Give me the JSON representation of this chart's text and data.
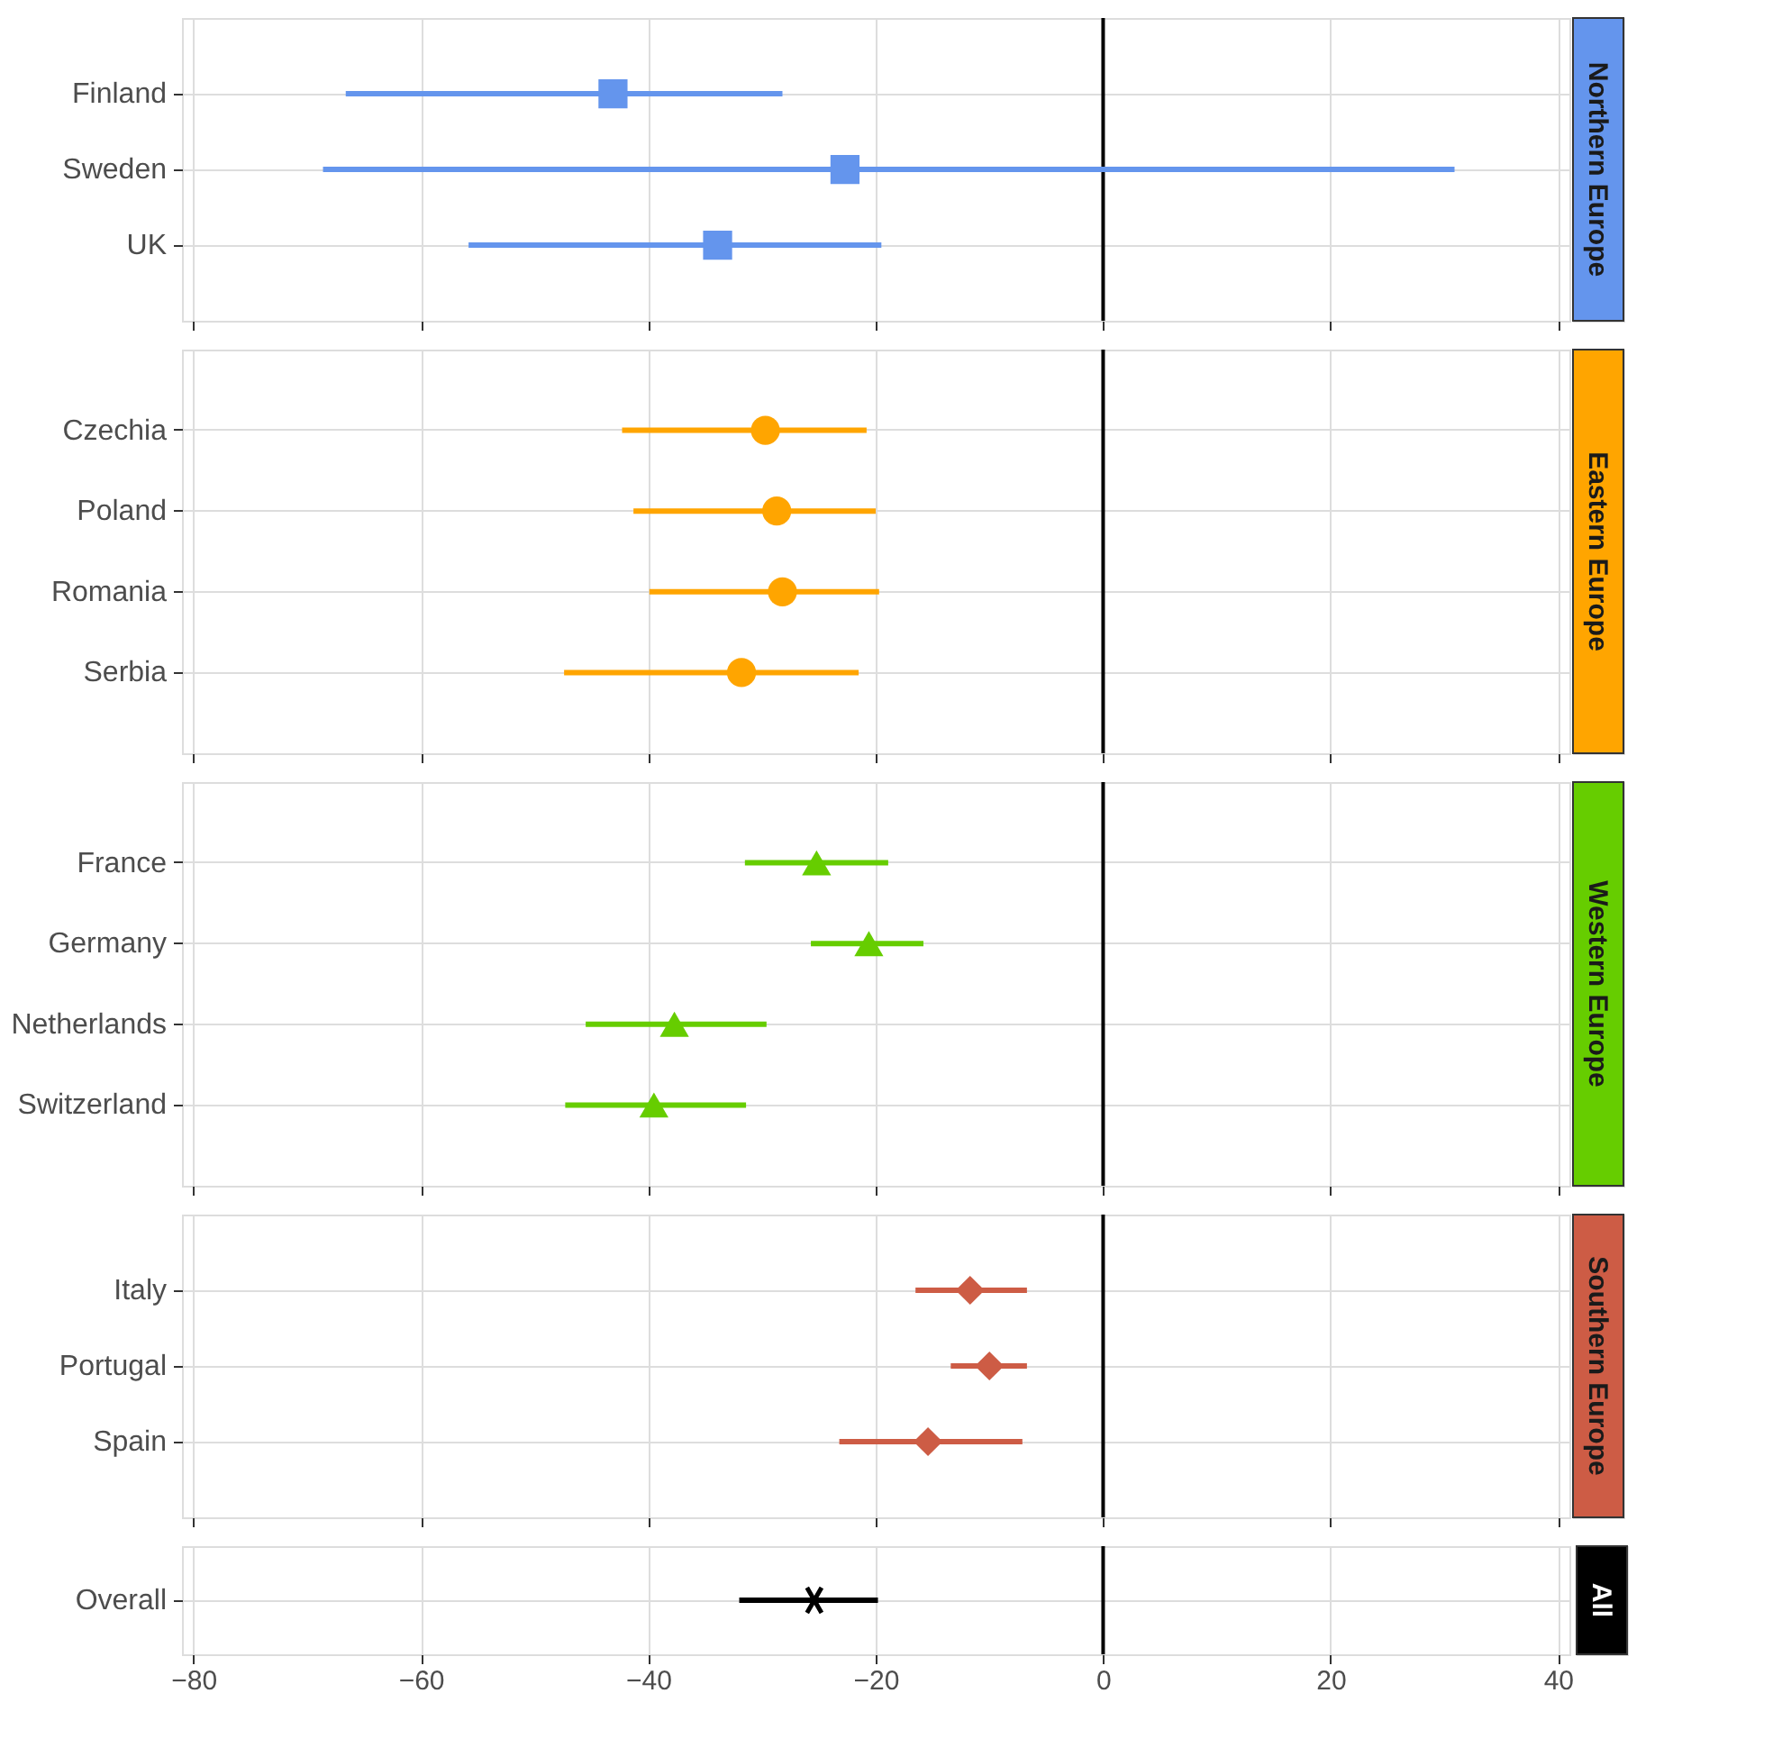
{
  "chart_data": [
    {
      "type": "scatter",
      "orientation": "horizontal",
      "title": "Northern Europe",
      "categories": [
        "Finland",
        "Sweden",
        "UK"
      ],
      "marker": "square",
      "series": [
        {
          "color": "#6495ed",
          "values": [
            -43.1,
            -22.7,
            -33.9
          ],
          "errors": [
            [
              -66.6,
              -28.2
            ],
            [
              -68.6,
              30.9
            ],
            [
              -55.8,
              -19.5
            ]
          ]
        }
      ],
      "xlim": [
        -81,
        41
      ],
      "xticks": [
        -80,
        -60,
        -40,
        -20,
        0,
        20,
        40
      ],
      "tick_labels": "y",
      "grid": true,
      "ref_lines": [
        {
          "axis": "x",
          "value": 0
        }
      ]
    },
    {
      "type": "scatter",
      "orientation": "horizontal",
      "title": "Eastern Europe",
      "categories": [
        "Czechia",
        "Poland",
        "Romania",
        "Serbia"
      ],
      "marker": "circle",
      "series": [
        {
          "color": "#ffa500",
          "values": [
            -29.7,
            -28.7,
            -28.2,
            -31.8
          ],
          "errors": [
            [
              -42.3,
              -20.8
            ],
            [
              -41.3,
              -20.0
            ],
            [
              -39.9,
              -19.7
            ],
            [
              -47.4,
              -21.5
            ]
          ]
        }
      ],
      "xlim": [
        -81,
        41
      ],
      "xticks": [
        -80,
        -60,
        -40,
        -20,
        0,
        20,
        40
      ],
      "tick_labels": "y",
      "grid": true,
      "ref_lines": [
        {
          "axis": "x",
          "value": 0
        }
      ]
    },
    {
      "type": "scatter",
      "orientation": "horizontal",
      "title": "Western Europe",
      "categories": [
        "France",
        "Germany",
        "Netherlands",
        "Switzerland"
      ],
      "marker": "triangle",
      "series": [
        {
          "color": "#66cd00",
          "values": [
            -25.2,
            -20.6,
            -37.7,
            -39.5
          ],
          "errors": [
            [
              -31.5,
              -18.9
            ],
            [
              -25.7,
              -15.8
            ],
            [
              -45.5,
              -29.6
            ],
            [
              -47.3,
              -31.4
            ]
          ]
        }
      ],
      "xlim": [
        -81,
        41
      ],
      "xticks": [
        -80,
        -60,
        -40,
        -20,
        0,
        20,
        40
      ],
      "tick_labels": "y",
      "grid": true,
      "ref_lines": [
        {
          "axis": "x",
          "value": 0
        }
      ]
    },
    {
      "type": "scatter",
      "orientation": "horizontal",
      "title": "Southern Europe",
      "categories": [
        "Italy",
        "Portugal",
        "Spain"
      ],
      "marker": "diamond",
      "series": [
        {
          "color": "#cd5c45",
          "values": [
            -11.7,
            -10.0,
            -15.4
          ],
          "errors": [
            [
              -16.5,
              -6.7
            ],
            [
              -13.4,
              -6.7
            ],
            [
              -23.2,
              -7.1
            ]
          ]
        }
      ],
      "xlim": [
        -81,
        41
      ],
      "xticks": [
        -80,
        -60,
        -40,
        -20,
        0,
        20,
        40
      ],
      "tick_labels": "y",
      "grid": true,
      "ref_lines": [
        {
          "axis": "x",
          "value": 0
        }
      ]
    },
    {
      "type": "scatter",
      "orientation": "horizontal",
      "title": "All",
      "categories": [
        "Overall"
      ],
      "marker": "cross",
      "series": [
        {
          "color": "#000000",
          "values": [
            -25.4
          ],
          "errors": [
            [
              -32.0,
              -19.8
            ]
          ]
        }
      ],
      "xlim": [
        -81,
        41
      ],
      "xticks": [
        -80,
        -60,
        -40,
        -20,
        0,
        20,
        40
      ],
      "grid": true,
      "ref_lines": [
        {
          "axis": "x",
          "value": 0
        }
      ]
    }
  ]
}
